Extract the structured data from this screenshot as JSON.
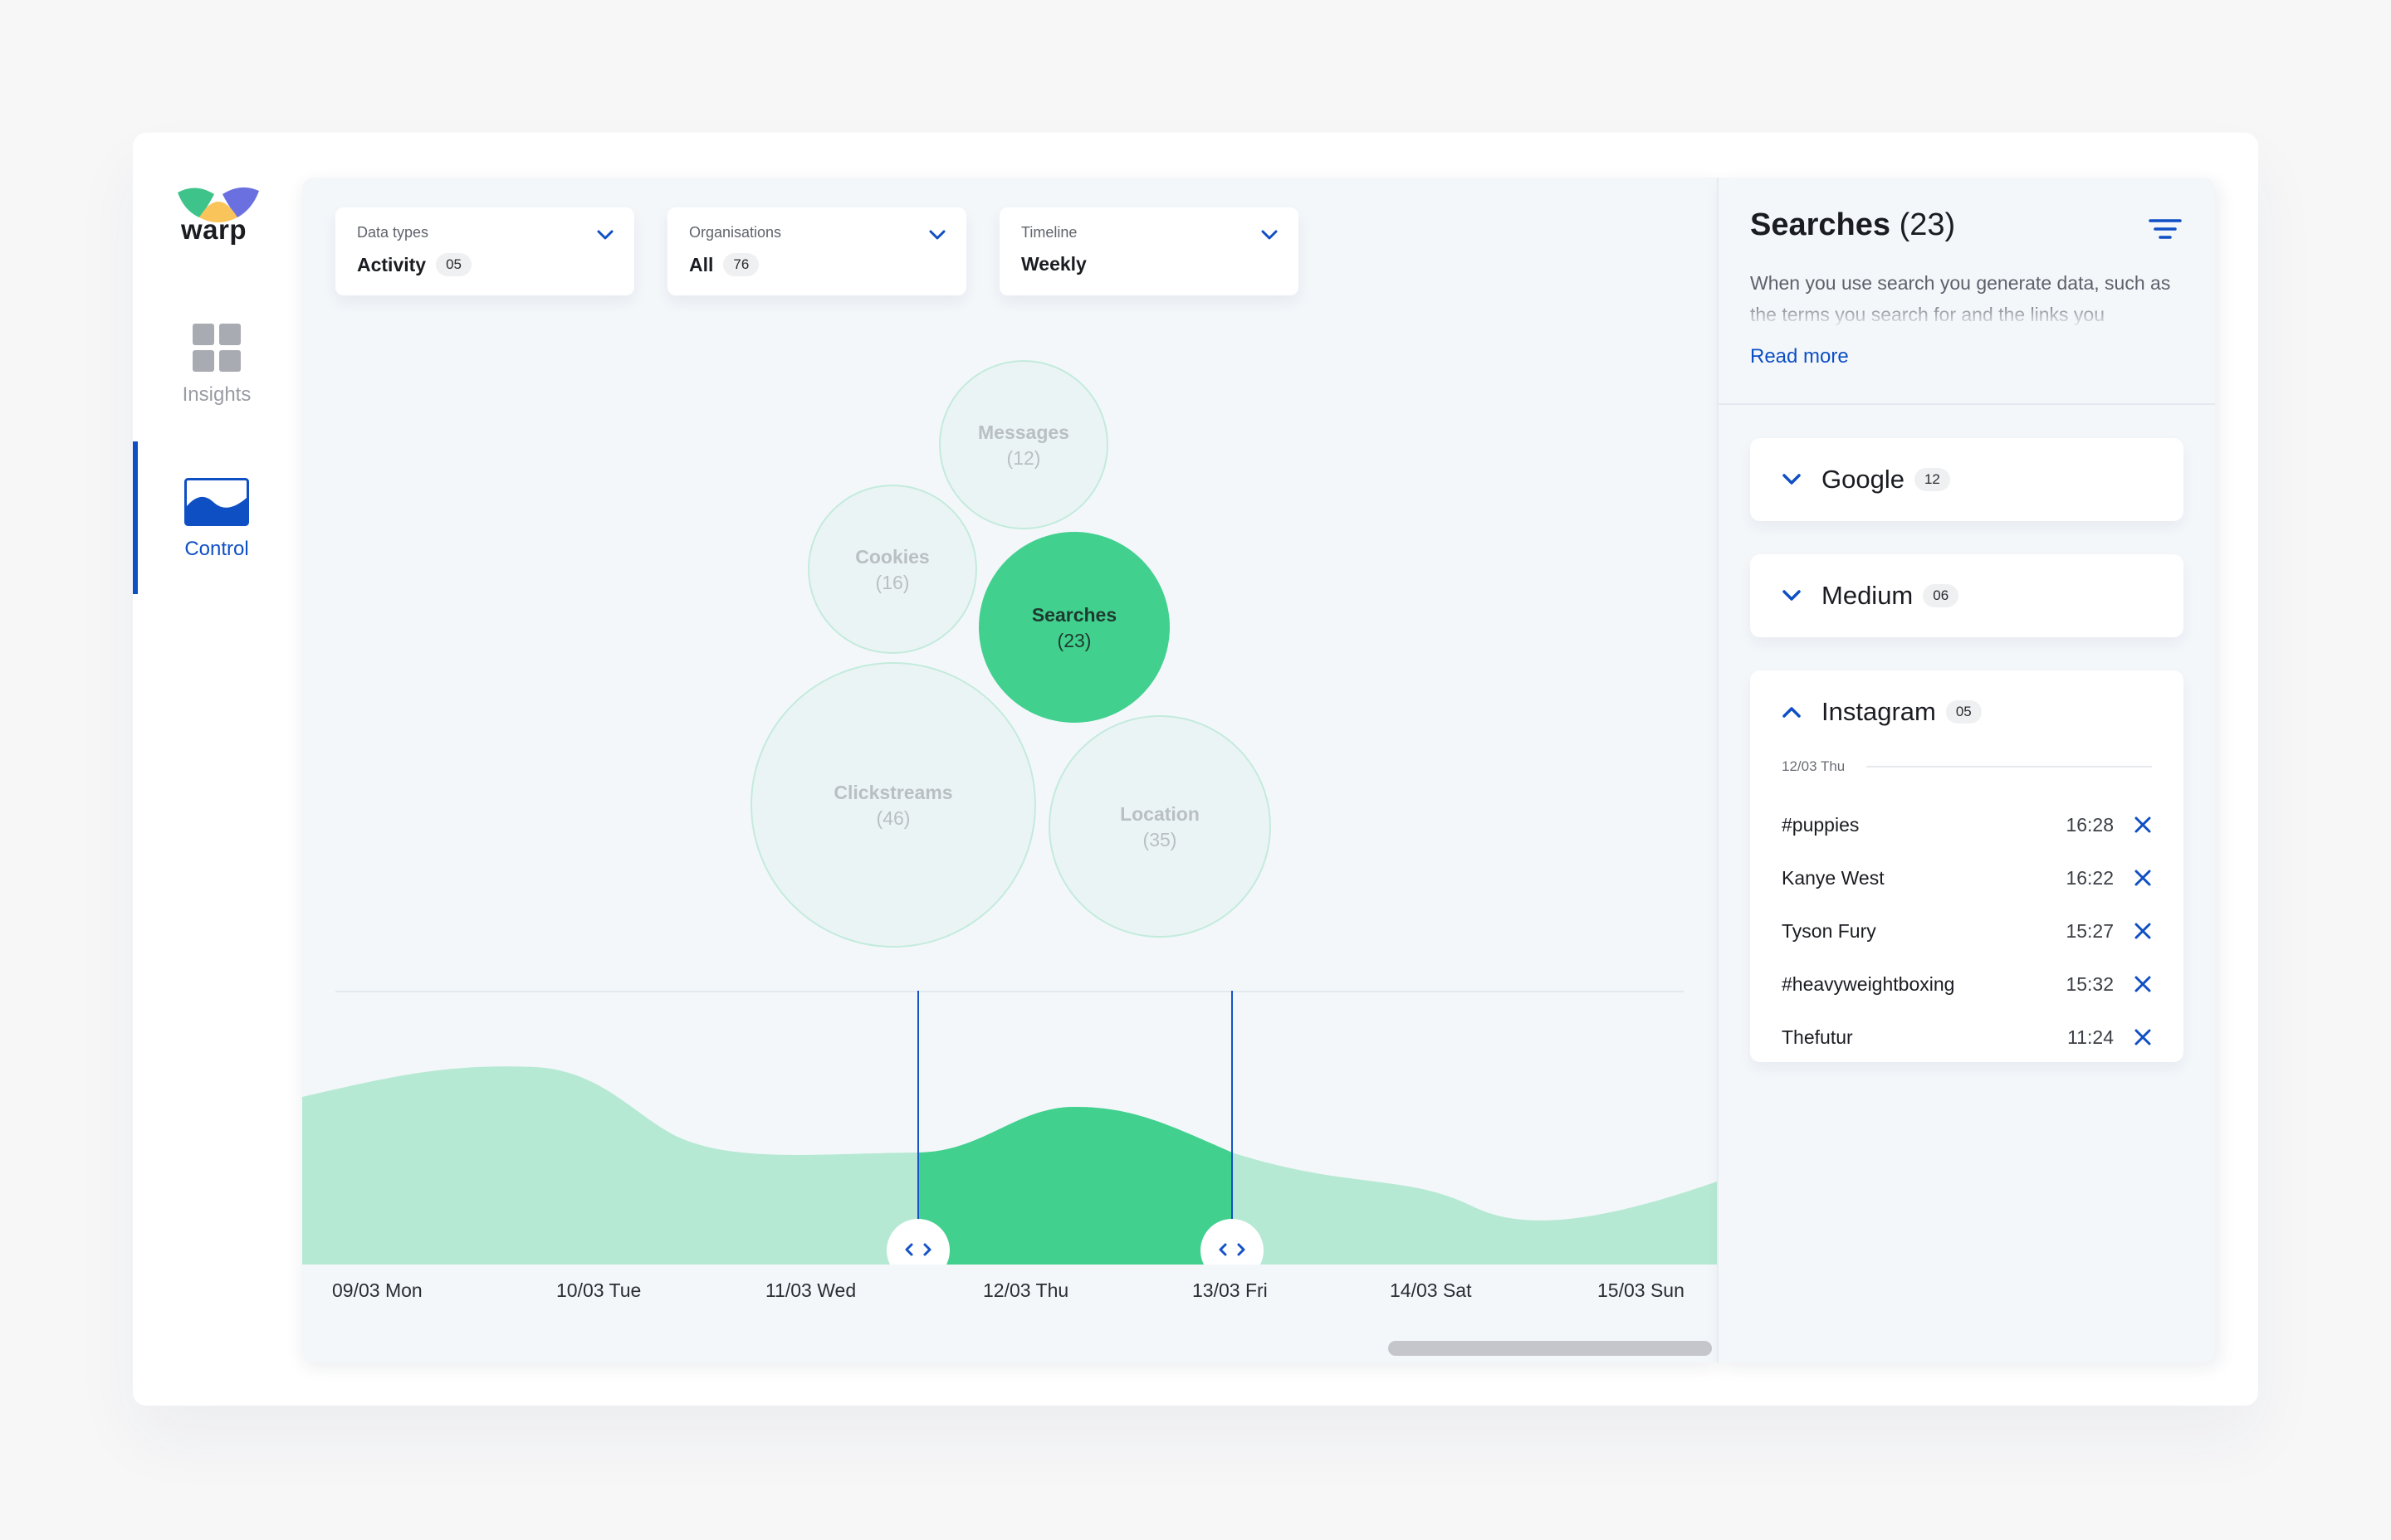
{
  "app": {
    "logo_text": "warp",
    "logo_colors": [
      "#3ec48a",
      "#f9c45a",
      "#6b70e0"
    ]
  },
  "nav": {
    "items": [
      {
        "label": "Insights",
        "icon": "grid-icon",
        "active": false
      },
      {
        "label": "Control",
        "icon": "wave-chart-icon",
        "active": true
      }
    ]
  },
  "filters": [
    {
      "label": "Data types",
      "value": "Activity",
      "badge": "05"
    },
    {
      "label": "Organisations",
      "value": "All",
      "badge": "76"
    },
    {
      "label": "Timeline",
      "value": "Weekly",
      "badge": ""
    }
  ],
  "bubbles": [
    {
      "name": "Messages",
      "count": "(12)",
      "selected": false
    },
    {
      "name": "Cookies",
      "count": "(16)",
      "selected": false
    },
    {
      "name": "Searches",
      "count": "(23)",
      "selected": true
    },
    {
      "name": "Clickstreams",
      "count": "(46)",
      "selected": false
    },
    {
      "name": "Location",
      "count": "(35)",
      "selected": false
    }
  ],
  "timeline": {
    "days": [
      "09/03 Mon",
      "10/03 Tue",
      "11/03 Wed",
      "12/03 Thu",
      "13/03 Fri",
      "14/03 Sat",
      "15/03 Sun"
    ],
    "selected_day": "12/03 Thu",
    "colors": {
      "area": "#b6e9d3",
      "selected": "#42d08f",
      "handle_line": "#1553c6"
    }
  },
  "side": {
    "title": "Searches",
    "count": "(23)",
    "description": "When you use search you generate data, such as the terms you search for and the links you",
    "read_more": "Read more",
    "accordions": [
      {
        "title": "Google",
        "badge": "12",
        "expanded": false
      },
      {
        "title": "Medium",
        "badge": "06",
        "expanded": false
      },
      {
        "title": "Instagram",
        "badge": "05",
        "expanded": true,
        "date": "12/03 Thu",
        "items": [
          {
            "term": "#puppies",
            "time": "16:28"
          },
          {
            "term": "Kanye West",
            "time": "16:22"
          },
          {
            "term": "Tyson Fury",
            "time": "15:27"
          },
          {
            "term": "#heavyweightboxing",
            "time": "15:32"
          },
          {
            "term": "Thefutur",
            "time": "11:24"
          }
        ]
      }
    ]
  },
  "colors": {
    "accent": "#0f4fc4",
    "bubble_selected": "#42d08f",
    "bubble_idle": "#ebf4f4",
    "bubble_stroke": "#c3ebdc"
  }
}
